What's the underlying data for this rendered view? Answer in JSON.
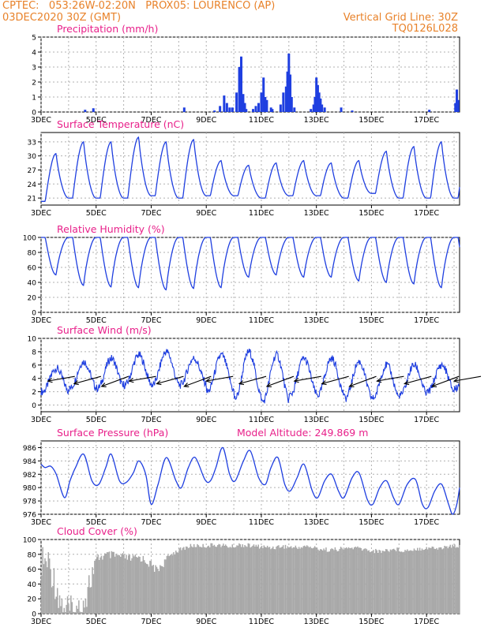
{
  "header": {
    "line1": "CPTEC:   053:26W-02:20N   PROX05: LOURENCO (AP)",
    "line2_left": "03DEC2020 30Z (GMT)",
    "line2_right": "Vertical Grid Line: 30Z",
    "line3_right": "TQ0126L028"
  },
  "colors": {
    "series": "#1f3fe0",
    "title": "#e8208a",
    "header": "#e8822a",
    "cloud": "#a8a8a8",
    "wind_arrow": "#000000"
  },
  "chart_data": [
    {
      "type": "bar",
      "title": "Precipitation (mm/h)",
      "ylim": [
        0,
        5
      ],
      "yticks": [
        0,
        1,
        2,
        3,
        4,
        5
      ],
      "x_range": [
        0,
        15.2
      ],
      "xticks": [
        "3DEC",
        "5DEC",
        "7DEC",
        "9DEC",
        "11DEC",
        "13DEC",
        "15DEC",
        "17DEC"
      ],
      "events": [
        [
          1.6,
          0.15
        ],
        [
          1.9,
          0.25
        ],
        [
          5.2,
          0.3
        ],
        [
          6.3,
          0.1
        ],
        [
          6.5,
          0.4
        ],
        [
          6.65,
          1.1
        ],
        [
          6.75,
          0.6
        ],
        [
          6.85,
          0.3
        ],
        [
          6.95,
          0.3
        ],
        [
          7.1,
          1.3
        ],
        [
          7.2,
          3.0
        ],
        [
          7.27,
          3.7
        ],
        [
          7.34,
          1.2
        ],
        [
          7.4,
          0.6
        ],
        [
          7.45,
          0.2
        ],
        [
          7.7,
          0.2
        ],
        [
          7.8,
          0.4
        ],
        [
          7.9,
          0.6
        ],
        [
          8.0,
          1.3
        ],
        [
          8.08,
          2.3
        ],
        [
          8.14,
          1.0
        ],
        [
          8.2,
          0.8
        ],
        [
          8.35,
          0.3
        ],
        [
          8.4,
          0.2
        ],
        [
          8.7,
          0.5
        ],
        [
          8.8,
          1.3
        ],
        [
          8.9,
          1.7
        ],
        [
          8.95,
          2.7
        ],
        [
          9.0,
          3.9
        ],
        [
          9.05,
          2.5
        ],
        [
          9.1,
          1.0
        ],
        [
          9.2,
          0.3
        ],
        [
          9.8,
          0.2
        ],
        [
          9.9,
          0.5
        ],
        [
          9.95,
          1.0
        ],
        [
          10.0,
          2.3
        ],
        [
          10.05,
          1.8
        ],
        [
          10.1,
          1.3
        ],
        [
          10.15,
          0.9
        ],
        [
          10.2,
          0.5
        ],
        [
          10.3,
          0.3
        ],
        [
          10.9,
          0.3
        ],
        [
          11.3,
          0.1
        ],
        [
          14.1,
          0.15
        ],
        [
          15.05,
          0.6
        ],
        [
          15.1,
          1.5
        ],
        [
          15.15,
          0.8
        ]
      ]
    },
    {
      "type": "line",
      "title": "Surface Temperature (nC)",
      "ylim": [
        19.5,
        35
      ],
      "yticks": [
        21,
        24,
        27,
        30,
        33
      ],
      "x_range": [
        0,
        15.2
      ],
      "xticks": [
        "3DEC",
        "5DEC",
        "7DEC",
        "9DEC",
        "11DEC",
        "13DEC",
        "15DEC",
        "17DEC"
      ],
      "min": [
        20.3,
        21.0,
        21.0,
        21.0,
        21.5,
        21.0,
        21.5,
        21.5,
        21.0,
        21.5,
        21.5,
        21.0,
        22.0,
        21.0,
        21.0,
        21.0
      ],
      "max": [
        30.5,
        33.0,
        33.0,
        34.0,
        33.0,
        33.5,
        29.0,
        28.0,
        28.5,
        29.0,
        28.5,
        29.0,
        31.0,
        32.0,
        33.0,
        33.0
      ]
    },
    {
      "type": "line",
      "title": "Relative Humidity (%)",
      "ylim": [
        0,
        100
      ],
      "yticks": [
        0,
        20,
        40,
        60,
        80,
        100
      ],
      "x_range": [
        0,
        15.2
      ],
      "xticks": [
        "3DEC",
        "5DEC",
        "7DEC",
        "9DEC",
        "11DEC",
        "13DEC",
        "15DEC",
        "17DEC"
      ],
      "min": [
        50,
        36,
        34,
        33,
        30,
        32,
        33,
        47,
        50,
        47,
        47,
        42,
        40,
        38,
        33,
        33
      ],
      "max": [
        100,
        100,
        100,
        100,
        100,
        100,
        100,
        100,
        100,
        100,
        100,
        100,
        100,
        100,
        100,
        100
      ]
    },
    {
      "type": "line",
      "title": "Surface Wind (m/s)",
      "ylim": [
        -1,
        10
      ],
      "yticks": [
        0,
        2,
        4,
        6,
        8,
        10
      ],
      "x_range": [
        0,
        15.2
      ],
      "xticks": [
        "3DEC",
        "5DEC",
        "7DEC",
        "9DEC",
        "11DEC",
        "13DEC",
        "15DEC",
        "17DEC"
      ],
      "min": [
        2.0,
        2.5,
        2.5,
        3.0,
        3.0,
        3.0,
        2.0,
        1.0,
        0.5,
        1.5,
        1.5,
        1.0,
        1.0,
        1.5,
        2.0,
        2.5
      ],
      "max": [
        5.5,
        6.5,
        7.0,
        7.5,
        8.0,
        7.0,
        7.5,
        8.0,
        7.5,
        7.0,
        7.0,
        6.5,
        6.0,
        6.0,
        6.0,
        6.5
      ],
      "arrows_x": [
        0.25,
        1.2,
        2.2,
        3.2,
        4.2,
        5.2,
        6.0,
        7.2,
        8.2,
        9.2,
        10.2,
        11.2,
        12.2,
        13.2,
        14.2,
        15.0
      ]
    },
    {
      "type": "line",
      "title": "Surface Pressure (hPa)",
      "subtitle": "Model Altitude: 249.869  m",
      "ylim": [
        976,
        987
      ],
      "yticks": [
        976,
        978,
        980,
        982,
        984,
        986
      ],
      "x_range": [
        0,
        15.2
      ],
      "xticks": [
        "3DEC",
        "5DEC",
        "7DEC",
        "9DEC",
        "11DEC",
        "13DEC",
        "15DEC",
        "17DEC"
      ],
      "points": [
        [
          0.0,
          983.5
        ],
        [
          0.15,
          983.0
        ],
        [
          0.35,
          983.2
        ],
        [
          0.55,
          982.0
        ],
        [
          0.85,
          978.5
        ],
        [
          1.05,
          981.0
        ],
        [
          1.25,
          983.0
        ],
        [
          1.55,
          985.0
        ],
        [
          1.85,
          981.0
        ],
        [
          2.1,
          980.5
        ],
        [
          2.35,
          983.0
        ],
        [
          2.55,
          985.0
        ],
        [
          2.85,
          981.0
        ],
        [
          3.1,
          980.8
        ],
        [
          3.35,
          982.2
        ],
        [
          3.55,
          984.0
        ],
        [
          3.8,
          982.0
        ],
        [
          4.0,
          977.5
        ],
        [
          4.25,
          980.5
        ],
        [
          4.55,
          984.5
        ],
        [
          4.9,
          981.0
        ],
        [
          5.1,
          980.0
        ],
        [
          5.35,
          983.0
        ],
        [
          5.6,
          984.5
        ],
        [
          5.95,
          981.2
        ],
        [
          6.15,
          981.0
        ],
        [
          6.35,
          983.0
        ],
        [
          6.6,
          986.0
        ],
        [
          6.85,
          982.0
        ],
        [
          7.05,
          981.0
        ],
        [
          7.35,
          984.0
        ],
        [
          7.6,
          985.5
        ],
        [
          7.9,
          981.5
        ],
        [
          8.15,
          980.5
        ],
        [
          8.35,
          983.0
        ],
        [
          8.6,
          984.5
        ],
        [
          8.85,
          980.5
        ],
        [
          9.05,
          979.5
        ],
        [
          9.3,
          981.5
        ],
        [
          9.55,
          983.5
        ],
        [
          9.85,
          979.5
        ],
        [
          10.05,
          978.5
        ],
        [
          10.3,
          981.0
        ],
        [
          10.55,
          982.0
        ],
        [
          10.8,
          979.5
        ],
        [
          11.0,
          978.5
        ],
        [
          11.3,
          981.5
        ],
        [
          11.55,
          982.2
        ],
        [
          11.85,
          978.2
        ],
        [
          12.05,
          977.5
        ],
        [
          12.3,
          980.0
        ],
        [
          12.55,
          981.0
        ],
        [
          12.8,
          978.5
        ],
        [
          13.0,
          977.5
        ],
        [
          13.3,
          980.5
        ],
        [
          13.6,
          981.2
        ],
        [
          13.85,
          977.5
        ],
        [
          14.05,
          977.0
        ],
        [
          14.3,
          979.5
        ],
        [
          14.55,
          980.5
        ],
        [
          14.8,
          977.5
        ],
        [
          14.95,
          976.0
        ],
        [
          15.1,
          977.5
        ],
        [
          15.2,
          980.0
        ]
      ]
    },
    {
      "type": "bar",
      "title": "Cloud Cover (%)",
      "ylim": [
        0,
        100
      ],
      "yticks": [
        0,
        20,
        40,
        60,
        80,
        100
      ],
      "x_range": [
        0,
        15.2
      ],
      "xticks": [
        "3DEC",
        "5DEC",
        "7DEC",
        "9DEC",
        "11DEC",
        "13DEC",
        "15DEC",
        "17DEC"
      ],
      "levels": [
        [
          0.0,
          93
        ],
        [
          0.3,
          90
        ],
        [
          0.55,
          60
        ],
        [
          0.75,
          35
        ],
        [
          0.95,
          30
        ],
        [
          1.2,
          20
        ],
        [
          1.45,
          30
        ],
        [
          1.65,
          50
        ],
        [
          1.85,
          75
        ],
        [
          2.1,
          82
        ],
        [
          2.4,
          85
        ],
        [
          2.7,
          84
        ],
        [
          3.0,
          82
        ],
        [
          3.3,
          80
        ],
        [
          3.6,
          82
        ],
        [
          3.9,
          75
        ],
        [
          4.2,
          65
        ],
        [
          4.5,
          76
        ],
        [
          4.8,
          85
        ],
        [
          5.1,
          90
        ],
        [
          5.4,
          94
        ],
        [
          5.7,
          95
        ],
        [
          6.0,
          94
        ],
        [
          6.3,
          96
        ],
        [
          6.6,
          95
        ],
        [
          6.9,
          93
        ],
        [
          7.2,
          96
        ],
        [
          7.5,
          95
        ],
        [
          7.8,
          94
        ],
        [
          8.1,
          93
        ],
        [
          8.4,
          92
        ],
        [
          8.7,
          94
        ],
        [
          9.0,
          93
        ],
        [
          9.3,
          92
        ],
        [
          9.6,
          94
        ],
        [
          9.9,
          92
        ],
        [
          10.2,
          90
        ],
        [
          10.5,
          89
        ],
        [
          10.8,
          90
        ],
        [
          11.1,
          91
        ],
        [
          11.4,
          92
        ],
        [
          11.7,
          90
        ],
        [
          12.0,
          88
        ],
        [
          12.3,
          87
        ],
        [
          12.6,
          89
        ],
        [
          12.9,
          90
        ],
        [
          13.2,
          88
        ],
        [
          13.5,
          90
        ],
        [
          13.8,
          91
        ],
        [
          14.1,
          92
        ],
        [
          14.4,
          91
        ],
        [
          14.7,
          93
        ],
        [
          15.0,
          94
        ],
        [
          15.2,
          95
        ]
      ]
    }
  ]
}
